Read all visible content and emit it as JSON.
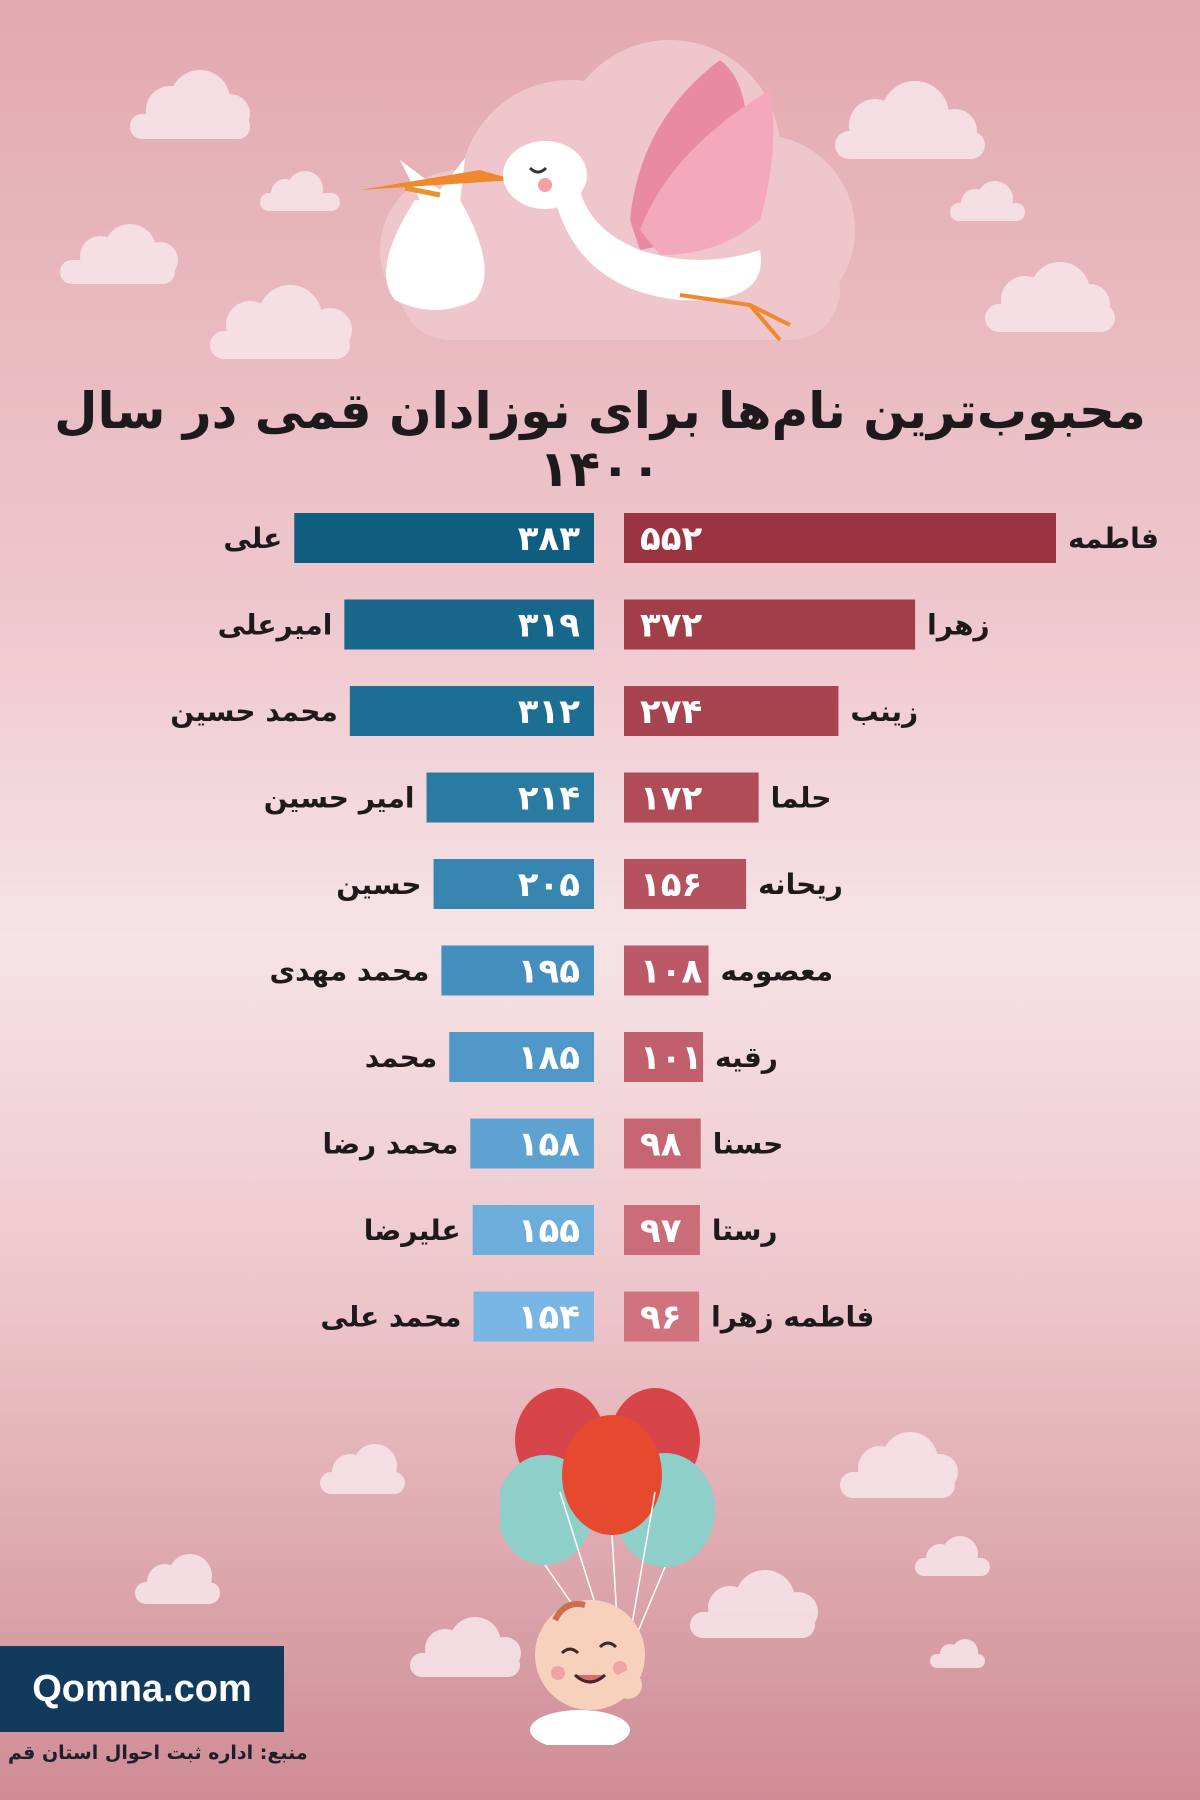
{
  "title": "محبوب‌ترین نام‌ها برای نوزادان قمی در سال ۱۴۰۰",
  "chart_data": [
    {
      "type": "bar",
      "orientation": "horizontal",
      "categories": [
        "فاطمه",
        "زهرا",
        "زینب",
        "حلما",
        "ریحانه",
        "معصومه",
        "رقیه",
        "حسنا",
        "رستا",
        "فاطمه زهرا"
      ],
      "values": [
        552,
        372,
        274,
        172,
        156,
        108,
        101,
        98,
        97,
        96
      ],
      "value_labels": [
        "۵۵۲",
        "۳۷۲",
        "۲۷۴",
        "۱۷۲",
        "۱۵۶",
        "۱۰۸",
        "۱۰۱",
        "۹۸",
        "۹۷",
        "۹۶"
      ],
      "colors": [
        "#9b3441",
        "#a13e4a",
        "#a84350",
        "#b04b58",
        "#b6525f",
        "#bd5966",
        "#c25f6c",
        "#c66673",
        "#cb6d79",
        "#d0737e"
      ]
    },
    {
      "type": "bar",
      "orientation": "horizontal",
      "categories": [
        "علی",
        "امیرعلی",
        "محمد حسین",
        "امیر حسین",
        "حسین",
        "محمد مهدی",
        "محمد",
        "محمد رضا",
        "علیرضا",
        "محمد علی"
      ],
      "values": [
        383,
        319,
        312,
        214,
        205,
        195,
        185,
        158,
        155,
        154
      ],
      "value_labels": [
        "۳۸۳",
        "۳۱۹",
        "۳۱۲",
        "۲۱۴",
        "۲۰۵",
        "۱۹۵",
        "۱۸۵",
        "۱۵۸",
        "۱۵۵",
        "۱۵۴"
      ],
      "colors": [
        "#0f5e80",
        "#16678a",
        "#1c6e92",
        "#2a7ba2",
        "#3786b1",
        "#438fbd",
        "#4f98c7",
        "#5da2d1",
        "#6caddb",
        "#7ab6e3"
      ]
    }
  ],
  "logo": "Qomna.com",
  "source": "منبع: اداره ثبت احوال استان قم"
}
